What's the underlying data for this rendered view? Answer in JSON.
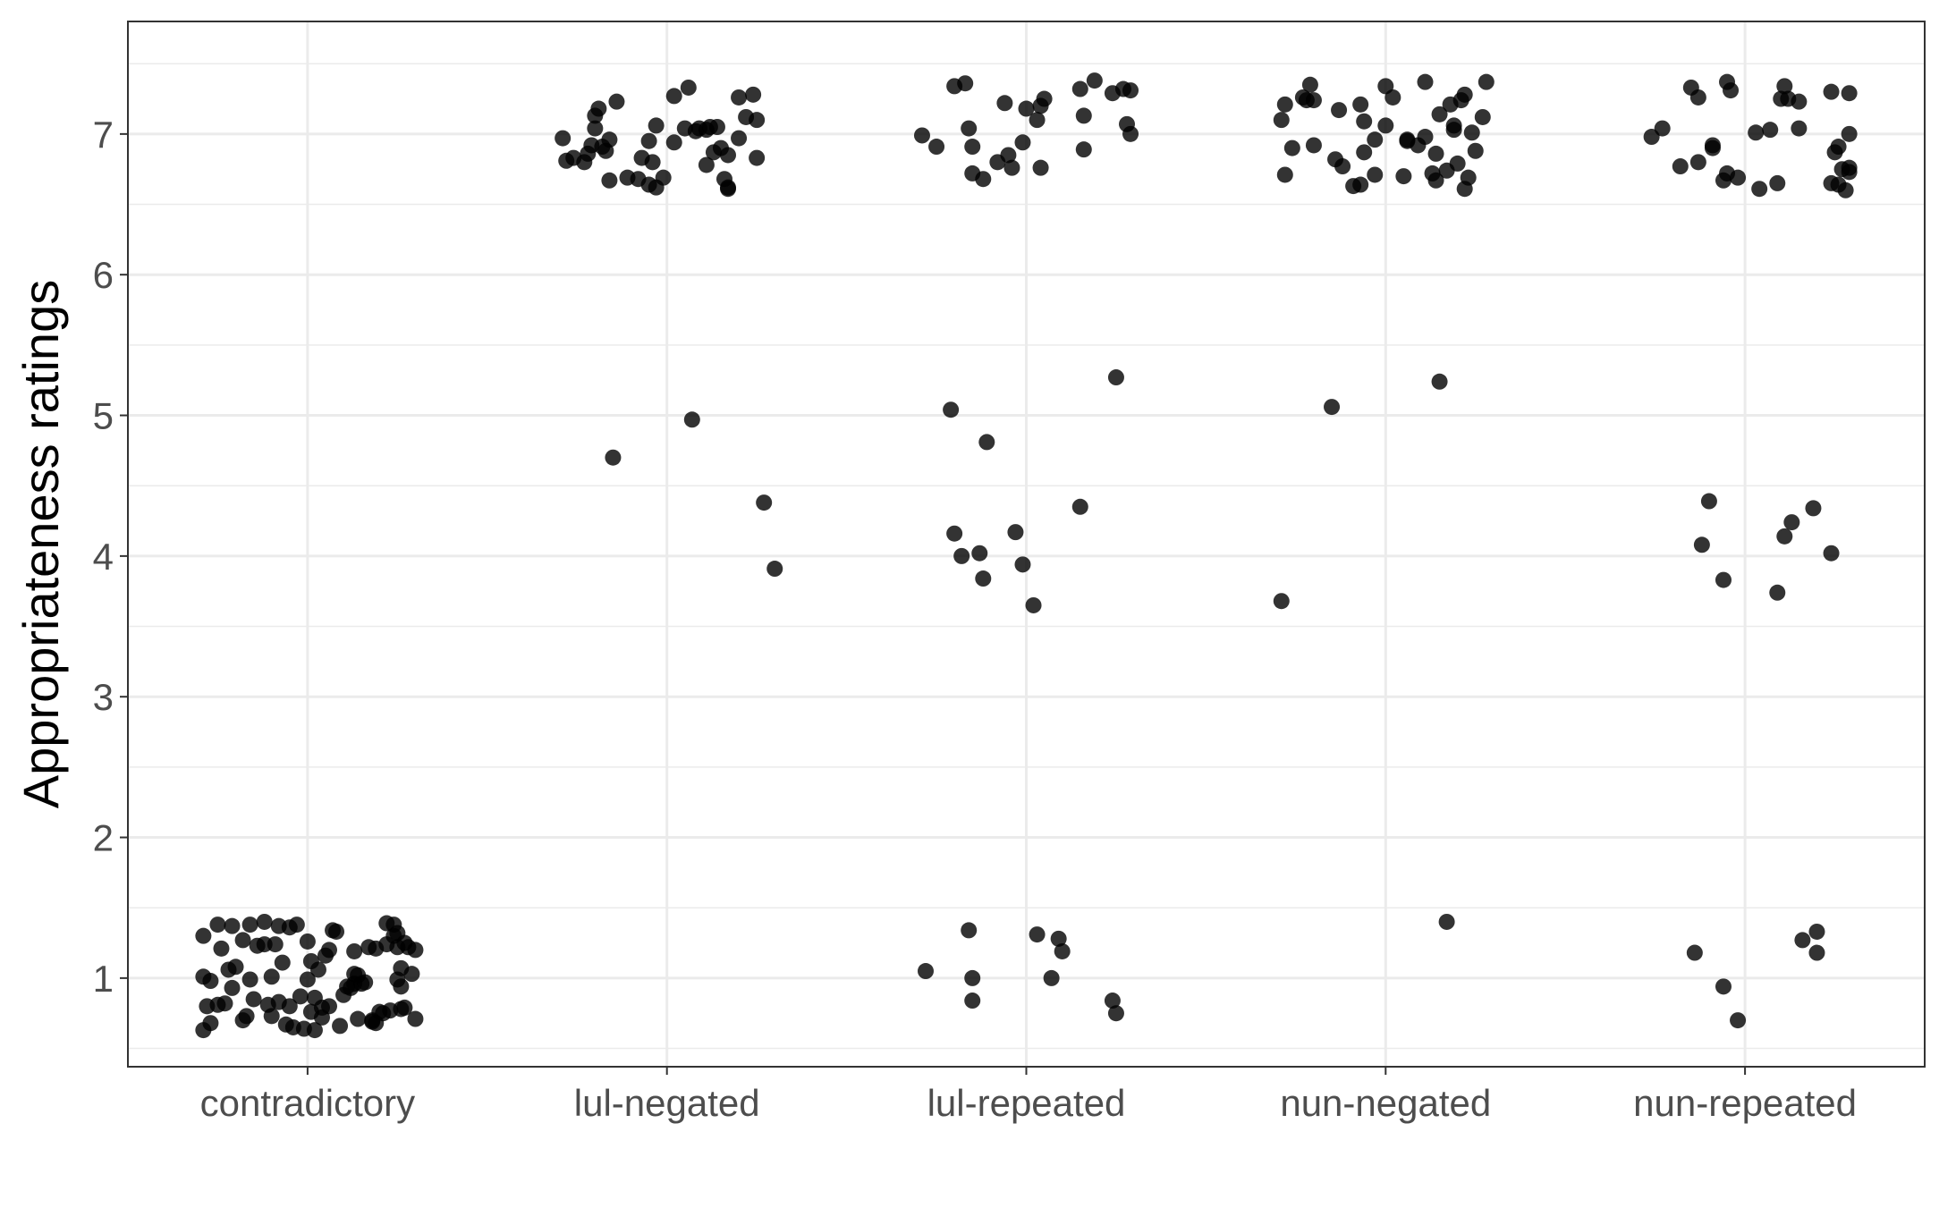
{
  "chart_data": {
    "type": "scatter",
    "title": "",
    "xlabel": "",
    "ylabel": "Appropriateness ratings",
    "categories": [
      "contradictory",
      "lul-negated",
      "lul-repeated",
      "nun-negated",
      "nun-repeated"
    ],
    "y_ticks": [
      1,
      2,
      3,
      4,
      5,
      6,
      7
    ],
    "ylim": [
      0.37,
      7.8
    ],
    "grid": true,
    "legend": "none",
    "point_color": "#000000",
    "point_opacity": 0.8,
    "jitter": "horizontal and vertical (approx. ±0.35)",
    "series": [
      {
        "category": "contradictory",
        "points": [
          [
            -0.29,
            0.63
          ],
          [
            -0.27,
            0.68
          ],
          [
            -0.28,
            0.8
          ],
          [
            -0.25,
            0.81
          ],
          [
            -0.23,
            0.82
          ],
          [
            -0.29,
            1.01
          ],
          [
            -0.27,
            0.98
          ],
          [
            -0.29,
            1.3
          ],
          [
            -0.25,
            1.38
          ],
          [
            -0.24,
            1.21
          ],
          [
            -0.21,
            1.37
          ],
          [
            -0.22,
            1.06
          ],
          [
            -0.21,
            0.93
          ],
          [
            -0.2,
            1.08
          ],
          [
            -0.18,
            1.27
          ],
          [
            -0.17,
            0.73
          ],
          [
            -0.18,
            0.7
          ],
          [
            -0.16,
            1.38
          ],
          [
            -0.16,
            0.99
          ],
          [
            -0.15,
            0.85
          ],
          [
            -0.14,
            1.23
          ],
          [
            -0.12,
            1.4
          ],
          [
            -0.12,
            1.24
          ],
          [
            -0.11,
            0.81
          ],
          [
            -0.1,
            1.01
          ],
          [
            -0.1,
            0.73
          ],
          [
            -0.09,
            1.24
          ],
          [
            -0.08,
            0.83
          ],
          [
            -0.08,
            1.37
          ],
          [
            -0.07,
            1.11
          ],
          [
            -0.06,
            0.67
          ],
          [
            -0.05,
            0.8
          ],
          [
            -0.05,
            1.36
          ],
          [
            -0.04,
            0.65
          ],
          [
            -0.03,
            1.38
          ],
          [
            -0.02,
            0.87
          ],
          [
            -0.01,
            0.64
          ],
          [
            0.0,
            0.99
          ],
          [
            0.0,
            1.26
          ],
          [
            0.01,
            0.76
          ],
          [
            0.01,
            1.12
          ],
          [
            0.02,
            0.63
          ],
          [
            0.02,
            0.86
          ],
          [
            0.03,
            1.06
          ],
          [
            0.04,
            0.72
          ],
          [
            0.04,
            0.79
          ],
          [
            0.05,
            1.16
          ],
          [
            0.06,
            1.2
          ],
          [
            0.06,
            0.8
          ],
          [
            0.07,
            1.34
          ],
          [
            0.08,
            1.33
          ],
          [
            0.09,
            0.66
          ],
          [
            0.1,
            0.88
          ],
          [
            0.11,
            0.94
          ],
          [
            0.12,
            0.93
          ],
          [
            0.13,
            0.96
          ],
          [
            0.13,
            1.19
          ],
          [
            0.13,
            1.03
          ],
          [
            0.14,
            0.71
          ],
          [
            0.14,
            1.02
          ],
          [
            0.15,
            0.96
          ],
          [
            0.16,
            0.97
          ],
          [
            0.17,
            1.22
          ],
          [
            0.18,
            0.7
          ],
          [
            0.18,
            0.69
          ],
          [
            0.19,
            0.68
          ],
          [
            0.19,
            1.21
          ],
          [
            0.2,
            0.76
          ],
          [
            0.21,
            0.75
          ],
          [
            0.22,
            1.39
          ],
          [
            0.22,
            1.24
          ],
          [
            0.23,
            0.77
          ],
          [
            0.24,
            1.38
          ],
          [
            0.25,
            1.32
          ],
          [
            0.25,
            1.22
          ],
          [
            0.25,
            0.99
          ],
          [
            0.26,
            0.94
          ],
          [
            0.26,
            1.07
          ],
          [
            0.27,
            1.25
          ],
          [
            0.27,
            0.79
          ],
          [
            0.28,
            1.22
          ],
          [
            0.29,
            1.03
          ],
          [
            0.3,
            0.71
          ],
          [
            0.3,
            1.2
          ],
          [
            0.26,
            0.78
          ],
          [
            0.24,
            1.3
          ]
        ]
      },
      {
        "category": "lul-negated",
        "points": [
          [
            -0.29,
            6.97
          ],
          [
            -0.28,
            6.81
          ],
          [
            -0.26,
            6.83
          ],
          [
            -0.23,
            6.8
          ],
          [
            -0.22,
            6.86
          ],
          [
            -0.21,
            6.92
          ],
          [
            -0.2,
            7.13
          ],
          [
            -0.2,
            7.04
          ],
          [
            -0.19,
            7.18
          ],
          [
            -0.18,
            6.91
          ],
          [
            -0.17,
            6.88
          ],
          [
            -0.16,
            6.96
          ],
          [
            -0.16,
            6.67
          ],
          [
            -0.14,
            7.23
          ],
          [
            -0.11,
            6.69
          ],
          [
            -0.08,
            6.68
          ],
          [
            -0.07,
            6.83
          ],
          [
            -0.05,
            6.64
          ],
          [
            -0.05,
            6.95
          ],
          [
            -0.04,
            6.8
          ],
          [
            -0.03,
            6.62
          ],
          [
            -0.03,
            7.06
          ],
          [
            -0.01,
            6.69
          ],
          [
            0.02,
            6.94
          ],
          [
            0.02,
            7.27
          ],
          [
            0.05,
            7.04
          ],
          [
            0.06,
            7.33
          ],
          [
            0.08,
            7.02
          ],
          [
            0.09,
            7.04
          ],
          [
            0.11,
            6.78
          ],
          [
            0.11,
            7.03
          ],
          [
            0.12,
            7.05
          ],
          [
            0.13,
            6.87
          ],
          [
            0.14,
            7.05
          ],
          [
            0.15,
            6.9
          ],
          [
            0.16,
            6.68
          ],
          [
            0.17,
            6.62
          ],
          [
            0.17,
            6.61
          ],
          [
            0.17,
            6.85
          ],
          [
            0.2,
            6.97
          ],
          [
            0.2,
            7.26
          ],
          [
            0.22,
            7.12
          ],
          [
            0.24,
            7.28
          ],
          [
            0.25,
            7.1
          ],
          [
            0.25,
            6.83
          ],
          [
            -0.15,
            4.7
          ],
          [
            0.07,
            4.97
          ],
          [
            0.27,
            4.38
          ],
          [
            0.3,
            3.91
          ]
        ]
      },
      {
        "category": "lul-repeated",
        "points": [
          [
            -0.29,
            6.99
          ],
          [
            -0.25,
            6.91
          ],
          [
            -0.2,
            7.34
          ],
          [
            -0.17,
            7.36
          ],
          [
            -0.16,
            7.04
          ],
          [
            -0.15,
            6.91
          ],
          [
            -0.15,
            6.72
          ],
          [
            -0.12,
            6.68
          ],
          [
            -0.08,
            6.8
          ],
          [
            -0.06,
            7.22
          ],
          [
            -0.05,
            6.85
          ],
          [
            -0.04,
            6.76
          ],
          [
            -0.01,
            6.94
          ],
          [
            0.0,
            7.18
          ],
          [
            0.03,
            7.1
          ],
          [
            0.04,
            7.2
          ],
          [
            0.05,
            7.25
          ],
          [
            0.04,
            6.76
          ],
          [
            0.15,
            7.32
          ],
          [
            0.16,
            7.13
          ],
          [
            0.16,
            6.89
          ],
          [
            0.19,
            7.38
          ],
          [
            0.24,
            7.29
          ],
          [
            0.27,
            7.32
          ],
          [
            0.28,
            7.07
          ],
          [
            0.29,
            7.31
          ],
          [
            0.29,
            7.0
          ],
          [
            -0.21,
            5.04
          ],
          [
            -0.11,
            4.81
          ],
          [
            0.25,
            5.27
          ],
          [
            -0.2,
            4.16
          ],
          [
            -0.18,
            4.0
          ],
          [
            -0.13,
            4.02
          ],
          [
            -0.12,
            3.84
          ],
          [
            -0.03,
            4.17
          ],
          [
            -0.01,
            3.94
          ],
          [
            0.02,
            3.65
          ],
          [
            0.15,
            4.35
          ],
          [
            -0.28,
            1.05
          ],
          [
            -0.16,
            1.34
          ],
          [
            -0.15,
            1.0
          ],
          [
            -0.15,
            0.84
          ],
          [
            0.03,
            1.31
          ],
          [
            0.07,
            1.0
          ],
          [
            0.09,
            1.28
          ],
          [
            0.1,
            1.19
          ],
          [
            0.24,
            0.84
          ],
          [
            0.25,
            0.75
          ]
        ]
      },
      {
        "category": "nun-negated",
        "points": [
          [
            -0.29,
            7.1
          ],
          [
            -0.28,
            6.71
          ],
          [
            -0.28,
            7.21
          ],
          [
            -0.26,
            6.9
          ],
          [
            -0.23,
            7.26
          ],
          [
            -0.22,
            7.24
          ],
          [
            -0.21,
            7.35
          ],
          [
            -0.2,
            7.24
          ],
          [
            -0.2,
            6.92
          ],
          [
            -0.14,
            6.82
          ],
          [
            -0.13,
            7.17
          ],
          [
            -0.12,
            6.77
          ],
          [
            -0.09,
            6.63
          ],
          [
            -0.07,
            6.64
          ],
          [
            -0.07,
            7.21
          ],
          [
            -0.06,
            7.09
          ],
          [
            -0.06,
            6.87
          ],
          [
            -0.03,
            6.96
          ],
          [
            -0.03,
            6.71
          ],
          [
            0.0,
            7.34
          ],
          [
            0.0,
            7.06
          ],
          [
            0.02,
            7.26
          ],
          [
            0.06,
            6.95
          ],
          [
            0.05,
            6.7
          ],
          [
            0.06,
            6.96
          ],
          [
            0.09,
            6.92
          ],
          [
            0.11,
            7.37
          ],
          [
            0.11,
            6.98
          ],
          [
            0.13,
            6.72
          ],
          [
            0.14,
            6.67
          ],
          [
            0.14,
            6.86
          ],
          [
            0.15,
            7.14
          ],
          [
            0.17,
            6.74
          ],
          [
            0.18,
            7.21
          ],
          [
            0.19,
            7.06
          ],
          [
            0.19,
            7.03
          ],
          [
            0.2,
            6.79
          ],
          [
            0.21,
            7.24
          ],
          [
            0.22,
            7.28
          ],
          [
            0.22,
            6.61
          ],
          [
            0.23,
            6.69
          ],
          [
            0.24,
            7.01
          ],
          [
            0.25,
            6.88
          ],
          [
            0.28,
            7.37
          ],
          [
            0.27,
            7.12
          ],
          [
            -0.15,
            5.06
          ],
          [
            0.15,
            5.24
          ],
          [
            -0.29,
            3.68
          ],
          [
            0.17,
            1.4
          ]
        ]
      },
      {
        "category": "nun-repeated",
        "points": [
          [
            -0.26,
            6.98
          ],
          [
            -0.23,
            7.04
          ],
          [
            -0.18,
            6.77
          ],
          [
            -0.15,
            7.33
          ],
          [
            -0.13,
            7.26
          ],
          [
            -0.13,
            6.8
          ],
          [
            -0.09,
            6.92
          ],
          [
            -0.09,
            6.9
          ],
          [
            -0.06,
            6.67
          ],
          [
            -0.05,
            6.72
          ],
          [
            -0.05,
            7.37
          ],
          [
            -0.04,
            7.31
          ],
          [
            -0.02,
            6.69
          ],
          [
            0.03,
            7.01
          ],
          [
            0.04,
            6.61
          ],
          [
            0.07,
            7.03
          ],
          [
            0.09,
            6.65
          ],
          [
            0.1,
            7.25
          ],
          [
            0.11,
            7.34
          ],
          [
            0.12,
            7.25
          ],
          [
            0.15,
            7.23
          ],
          [
            0.15,
            7.04
          ],
          [
            0.24,
            7.3
          ],
          [
            0.24,
            6.65
          ],
          [
            0.25,
            6.87
          ],
          [
            0.26,
            6.91
          ],
          [
            0.26,
            6.64
          ],
          [
            0.27,
            6.75
          ],
          [
            0.28,
            6.6
          ],
          [
            0.29,
            6.76
          ],
          [
            0.29,
            6.73
          ],
          [
            0.29,
            7.29
          ],
          [
            0.29,
            7.0
          ],
          [
            -0.1,
            4.39
          ],
          [
            -0.12,
            4.08
          ],
          [
            -0.06,
            3.83
          ],
          [
            0.09,
            3.74
          ],
          [
            0.11,
            4.14
          ],
          [
            0.13,
            4.24
          ],
          [
            0.19,
            4.34
          ],
          [
            0.24,
            4.02
          ],
          [
            -0.14,
            1.18
          ],
          [
            -0.06,
            0.94
          ],
          [
            -0.02,
            0.7
          ],
          [
            0.16,
            1.27
          ],
          [
            0.2,
            1.33
          ],
          [
            0.2,
            1.18
          ]
        ]
      }
    ]
  }
}
